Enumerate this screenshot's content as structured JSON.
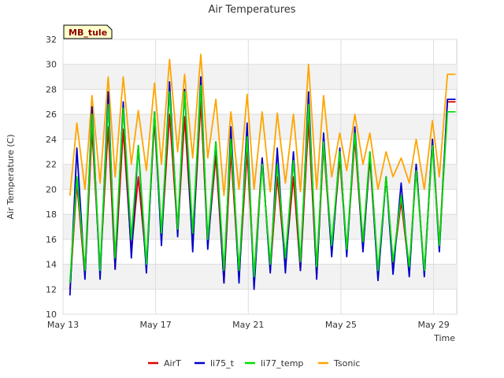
{
  "chart_data": {
    "type": "line",
    "title": "Air Temperatures",
    "xlabel": "Time",
    "ylabel": "Air Temperature (C)",
    "site_label": "MB_tule",
    "xlim": [
      0,
      17
    ],
    "ylim": [
      10,
      32
    ],
    "yticks": [
      10,
      12,
      14,
      16,
      18,
      20,
      22,
      24,
      26,
      28,
      30,
      32
    ],
    "xticks": [
      {
        "label": "May 13",
        "day": 0
      },
      {
        "label": "May 17",
        "day": 4
      },
      {
        "label": "May 21",
        "day": 8
      },
      {
        "label": "May 25",
        "day": 12
      },
      {
        "label": "May 29",
        "day": 16
      }
    ],
    "grid": true,
    "legend_position": "bottom",
    "series": [
      {
        "name": "AirT",
        "color": "#dd0000",
        "x": [
          0.3,
          0.6,
          0.95,
          1.25,
          1.6,
          1.95,
          2.25,
          2.6,
          2.95,
          3.25,
          3.6,
          3.95,
          4.25,
          4.6,
          4.95,
          5.25,
          5.6,
          5.95,
          6.25,
          6.6,
          6.95,
          7.25,
          7.6,
          7.95,
          8.25,
          8.6,
          8.95,
          9.25,
          9.6,
          9.95,
          10.25,
          10.6,
          10.95,
          11.25,
          11.6,
          11.95,
          12.25,
          12.6,
          12.95,
          13.25,
          13.6,
          13.95,
          14.25,
          14.6,
          14.95,
          15.25,
          15.6,
          15.95,
          16.25,
          16.6,
          16.95
        ],
        "y": [
          12.0,
          20.5,
          13.0,
          24.8,
          13.5,
          25.0,
          13.6,
          24.8,
          15.0,
          21.0,
          14.0,
          25.5,
          16.0,
          26.0,
          16.5,
          25.8,
          15.5,
          27.0,
          15.5,
          22.7,
          12.5,
          23.0,
          13.0,
          23.0,
          13.0,
          22.5,
          13.5,
          21.0,
          14.0,
          21.0,
          13.5,
          25.5,
          13.0,
          23.5,
          15.0,
          22.5,
          15.0,
          24.0,
          15.2,
          22.5,
          13.0,
          21.0,
          14.0,
          19.0,
          13.5,
          22.0,
          13.2,
          24.0,
          15.5,
          27.0,
          27.0
        ]
      },
      {
        "name": "li75_t",
        "color": "#0000cc",
        "x": [
          0.3,
          0.6,
          0.95,
          1.25,
          1.6,
          1.95,
          2.25,
          2.6,
          2.95,
          3.25,
          3.6,
          3.95,
          4.25,
          4.6,
          4.95,
          5.25,
          5.6,
          5.95,
          6.25,
          6.6,
          6.95,
          7.25,
          7.6,
          7.95,
          8.25,
          8.6,
          8.95,
          9.25,
          9.6,
          9.95,
          10.25,
          10.6,
          10.95,
          11.25,
          11.6,
          11.95,
          12.25,
          12.6,
          12.95,
          13.25,
          13.6,
          13.95,
          14.25,
          14.6,
          14.95,
          15.25,
          15.6,
          15.95,
          16.25,
          16.6,
          16.95
        ],
        "y": [
          11.5,
          23.3,
          12.8,
          26.6,
          12.8,
          27.8,
          13.6,
          27.0,
          14.5,
          23.5,
          13.3,
          26.2,
          15.5,
          28.6,
          16.2,
          28.0,
          15.0,
          29.0,
          15.2,
          23.8,
          12.5,
          25.0,
          12.5,
          25.3,
          12.0,
          22.5,
          13.3,
          23.3,
          13.3,
          23.0,
          13.5,
          27.8,
          12.8,
          24.5,
          14.6,
          23.3,
          14.6,
          25.0,
          15.0,
          23.0,
          12.7,
          21.0,
          13.2,
          20.5,
          13.0,
          22.0,
          13.0,
          24.0,
          15.0,
          27.2,
          27.2
        ]
      },
      {
        "name": "li77_temp",
        "color": "#00dd00",
        "x": [
          0.3,
          0.6,
          0.95,
          1.25,
          1.6,
          1.95,
          2.25,
          2.6,
          2.95,
          3.25,
          3.6,
          3.95,
          4.25,
          4.6,
          4.95,
          5.25,
          5.6,
          5.95,
          6.25,
          6.6,
          6.95,
          7.25,
          7.6,
          7.95,
          8.25,
          8.6,
          8.95,
          9.25,
          9.6,
          9.95,
          10.25,
          10.6,
          10.95,
          11.25,
          11.6,
          11.95,
          12.25,
          12.6,
          12.95,
          13.25,
          13.6,
          13.95,
          14.25,
          14.6,
          14.95,
          15.25,
          15.6,
          15.95,
          16.25,
          16.6,
          16.95
        ],
        "y": [
          12.5,
          21.0,
          13.5,
          26.0,
          13.5,
          26.8,
          14.5,
          26.5,
          16.0,
          23.5,
          14.0,
          26.2,
          16.5,
          27.8,
          16.8,
          27.8,
          16.5,
          28.3,
          16.0,
          23.8,
          13.5,
          24.0,
          13.5,
          24.2,
          13.0,
          22.0,
          14.0,
          22.0,
          14.5,
          22.3,
          14.2,
          26.8,
          13.8,
          23.8,
          15.5,
          23.0,
          15.2,
          24.5,
          15.8,
          23.0,
          13.5,
          21.0,
          14.2,
          19.5,
          13.8,
          21.5,
          13.5,
          23.5,
          15.5,
          26.2,
          26.2
        ]
      },
      {
        "name": "Tsonic",
        "color": "#ffa500",
        "x": [
          0.3,
          0.6,
          0.95,
          1.25,
          1.6,
          1.95,
          2.25,
          2.6,
          2.95,
          3.25,
          3.6,
          3.95,
          4.25,
          4.6,
          4.95,
          5.25,
          5.6,
          5.95,
          6.25,
          6.6,
          6.95,
          7.25,
          7.6,
          7.95,
          8.25,
          8.6,
          8.95,
          9.25,
          9.6,
          9.95,
          10.25,
          10.6,
          10.95,
          11.25,
          11.6,
          11.95,
          12.25,
          12.6,
          12.95,
          13.25,
          13.6,
          13.95,
          14.25,
          14.6,
          14.95,
          15.25,
          15.6,
          15.95,
          16.25,
          16.6,
          16.95
        ],
        "y": [
          19.5,
          25.3,
          20.0,
          27.5,
          20.5,
          29.0,
          21.0,
          29.0,
          22.0,
          26.3,
          21.5,
          28.5,
          22.0,
          30.4,
          23.0,
          29.2,
          22.5,
          30.8,
          22.5,
          27.2,
          19.5,
          26.2,
          20.0,
          27.6,
          20.0,
          26.2,
          19.8,
          26.1,
          20.5,
          26.0,
          19.8,
          30.0,
          20.0,
          27.5,
          21.0,
          24.5,
          21.5,
          26.0,
          22.0,
          24.5,
          20.0,
          23.0,
          21.0,
          22.5,
          20.5,
          24.0,
          20.0,
          25.5,
          21.0,
          29.2,
          29.2
        ]
      }
    ]
  }
}
